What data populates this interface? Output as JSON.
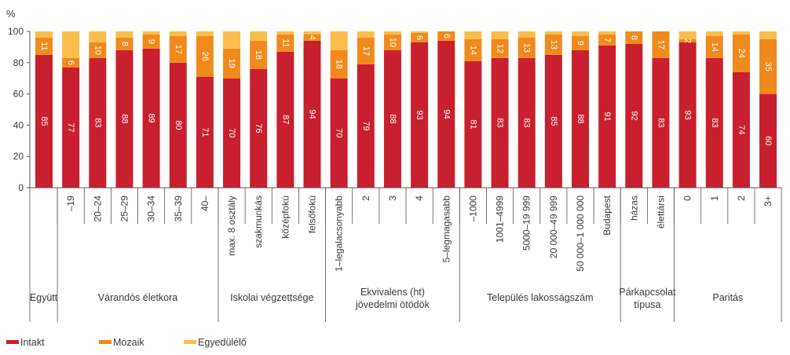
{
  "chart_data": {
    "type": "bar",
    "stacked": true,
    "ylabel": "%",
    "ylim": [
      0,
      100
    ],
    "yticks": [
      0,
      20,
      40,
      60,
      80,
      100
    ],
    "grid": false,
    "legend_position": "bottom-left",
    "colors": {
      "intakt": "#c8202e",
      "mozaik": "#f08a1c",
      "egyedulelo": "#fbbd4c"
    },
    "series": [
      {
        "name": "Intakt",
        "color": "#c8202e",
        "values": [
          85,
          77,
          83,
          88,
          89,
          80,
          71,
          70,
          76,
          87,
          94,
          70,
          79,
          88,
          93,
          94,
          81,
          83,
          83,
          85,
          88,
          91,
          92,
          83,
          93,
          83,
          74,
          60
        ]
      },
      {
        "name": "Mozaik",
        "color": "#f08a1c",
        "values": [
          11,
          6,
          10,
          8,
          9,
          17,
          26,
          19,
          18,
          11,
          4,
          18,
          17,
          10,
          6,
          6,
          14,
          12,
          13,
          13,
          9,
          7,
          8,
          17,
          2,
          14,
          24,
          35
        ]
      },
      {
        "name": "Egyedülélő",
        "color": "#fbbd4c",
        "values": [
          4,
          17,
          7,
          4,
          2,
          3,
          3,
          11,
          6,
          2,
          2,
          12,
          4,
          2,
          1,
          0,
          5,
          5,
          4,
          2,
          3,
          2,
          0,
          0,
          5,
          3,
          2,
          5
        ]
      }
    ],
    "value_labels": {
      "Intakt": [
        "85",
        "77",
        "83",
        "88",
        "89",
        "80",
        "71",
        "70",
        "76",
        "87",
        "94",
        "70",
        "79",
        "88",
        "93",
        "94",
        "81",
        "83",
        "83",
        "85",
        "88",
        "91",
        "92",
        "83",
        "93",
        "83",
        "74",
        "60"
      ],
      "Mozaik": [
        "11",
        "6",
        "10",
        "8",
        "9",
        "17",
        "26",
        "19",
        "18",
        "11",
        "4",
        "18",
        "17",
        "10",
        "6",
        "6",
        "14",
        "12",
        "13",
        "13",
        "9",
        "7",
        "8",
        "17",
        "2",
        "14",
        "24",
        "35"
      ]
    },
    "categories": [
      "",
      "–19",
      "20–24",
      "25–29",
      "30–34",
      "35–39",
      "40–",
      "max. 8 osztály",
      "szakmunkás",
      "középfokú",
      "felsőfokú",
      "1–legalacsonyabb",
      "2",
      "3",
      "4",
      "5–legmagasabb",
      "–1000",
      "1001–4999",
      "5000–19 999",
      "20 000–49 999",
      "50 000–1 000 000",
      "Budapest",
      "házas",
      "élettársi",
      "0",
      "1",
      "2",
      "3+"
    ],
    "groups": [
      {
        "label": "Együtt",
        "count": 1
      },
      {
        "label": "Várandós életkora",
        "count": 6
      },
      {
        "label": "Iskolai végzettsége",
        "count": 4
      },
      {
        "label": "Ekvivalens (ht) jövedelmi ötödök",
        "count": 5
      },
      {
        "label": "Település lakosságszám",
        "count": 6
      },
      {
        "label": "Párkapcsolat típusa",
        "count": 2
      },
      {
        "label": "Paritás",
        "count": 4
      }
    ],
    "group_label_lines": [
      [
        "Együtt"
      ],
      [
        "Várandós életkora"
      ],
      [
        "Iskolai végzettsége"
      ],
      [
        "Ekvivalens (ht)",
        "jövedelmi ötödök"
      ],
      [
        "Település lakosságszám"
      ],
      [
        "Párkapcsolat",
        "típusa"
      ],
      [
        "Paritás"
      ]
    ]
  },
  "legend": {
    "items": [
      {
        "label": "Intakt",
        "color": "#c8202e"
      },
      {
        "label": "Mozaik",
        "color": "#f08a1c"
      },
      {
        "label": "Egyedülélő",
        "color": "#fbbd4c"
      }
    ]
  }
}
